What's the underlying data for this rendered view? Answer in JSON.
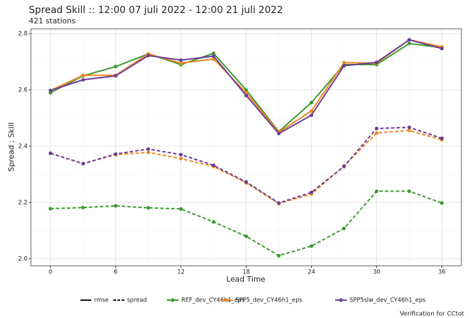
{
  "chart_data": {
    "type": "line",
    "title": "Spread Skill :: 12:00 07 juli 2022 - 12:00 21 juli 2022",
    "subtitle": "421 stations",
    "x_label": "Lead Time",
    "y_label": "Spread ; Skill",
    "caption": "Verification for CCtot",
    "x": [
      0,
      3,
      6,
      9,
      12,
      15,
      18,
      21,
      24,
      27,
      30,
      33,
      36
    ],
    "xlim": [
      -1.8,
      37.8
    ],
    "xticks": [
      0,
      6,
      12,
      18,
      24,
      30,
      36
    ],
    "ylim": [
      1.975,
      2.817
    ],
    "yticks": [
      {
        "value": 2,
        "label": "2.0"
      },
      2.2,
      2.4,
      2.6,
      2.8
    ],
    "grid": true,
    "linetypes": [
      "rmse",
      "spread"
    ],
    "series": [
      {
        "name": "REF_dev_CY46h1_eps",
        "color": "#3a9a2e",
        "values": [
          2.59,
          2.65,
          2.683,
          2.728,
          2.69,
          2.73,
          2.6,
          2.452,
          2.555,
          2.69,
          2.69,
          2.765,
          2.75
        ],
        "spread": [
          2.178,
          2.182,
          2.188,
          2.181,
          2.177,
          2.131,
          2.08,
          2.011,
          2.045,
          2.108,
          2.24,
          2.24,
          2.198
        ]
      },
      {
        "name": "SPP5_dev_CY46h1_eps",
        "color": "#f0861c",
        "values": [
          2.598,
          2.652,
          2.652,
          2.728,
          2.695,
          2.71,
          2.59,
          2.45,
          2.525,
          2.697,
          2.695,
          2.778,
          2.753
        ],
        "spread": [
          2.375,
          2.338,
          2.37,
          2.378,
          2.356,
          2.328,
          2.27,
          2.196,
          2.23,
          2.33,
          2.447,
          2.456,
          2.423
        ]
      },
      {
        "name": "SPP5slw_dev_CY46h1_eps",
        "color": "#6a3d9a",
        "values": [
          2.598,
          2.636,
          2.65,
          2.722,
          2.706,
          2.72,
          2.58,
          2.445,
          2.51,
          2.686,
          2.698,
          2.778,
          2.747
        ],
        "spread": [
          2.375,
          2.338,
          2.372,
          2.39,
          2.37,
          2.332,
          2.273,
          2.198,
          2.236,
          2.328,
          2.463,
          2.467,
          2.428
        ]
      }
    ]
  }
}
